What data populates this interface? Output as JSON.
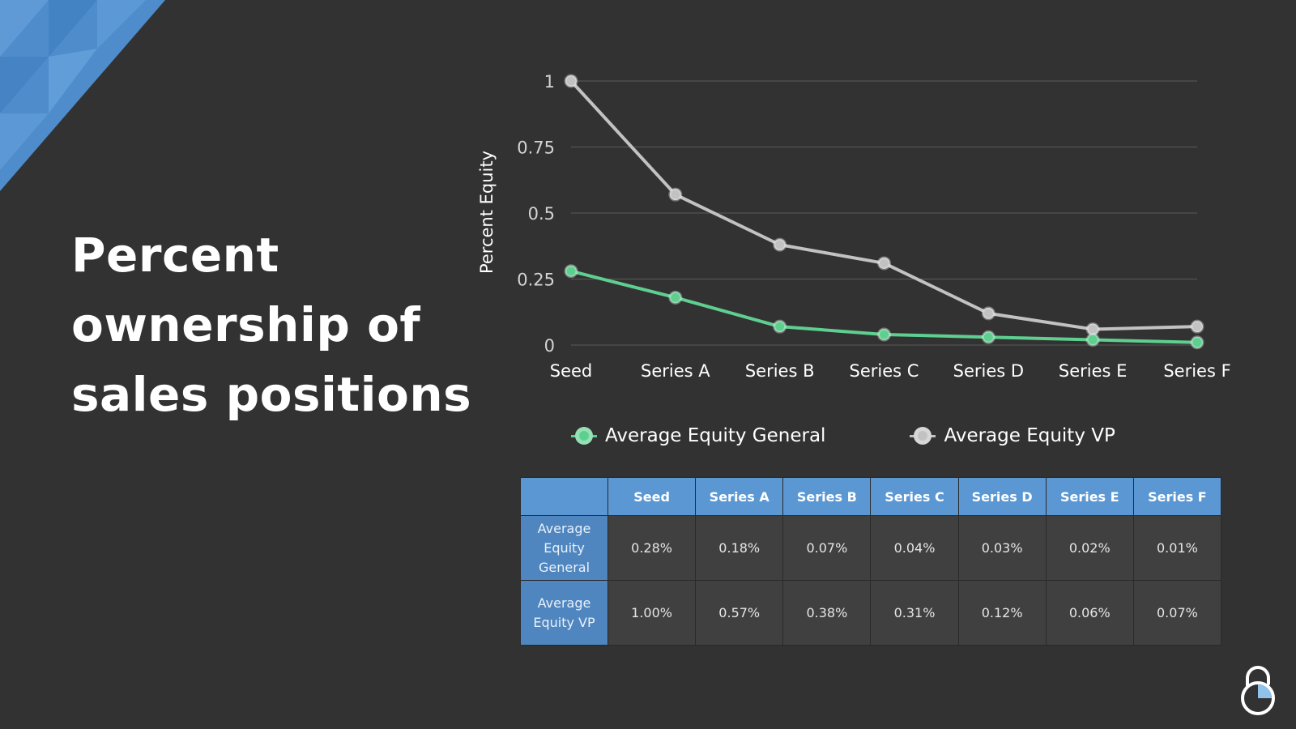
{
  "slide": {
    "title": "Percent ownership of sales positions"
  },
  "colors": {
    "background": "#323232",
    "general": "#5fcf90",
    "vp": "#c2c2c2",
    "accent": "#4f86bf"
  },
  "chart_data": {
    "type": "line",
    "title": "",
    "xlabel": "",
    "ylabel": "Percent Equity",
    "categories": [
      "Seed",
      "Series A",
      "Series B",
      "Series C",
      "Series D",
      "Series E",
      "Series F"
    ],
    "ylim": [
      0,
      1
    ],
    "yticks": [
      0,
      0.25,
      0.5,
      0.75,
      1
    ],
    "ytick_labels": [
      "0",
      "0.25",
      "0.5",
      "0.75",
      "1"
    ],
    "grid": true,
    "legend": "bottom",
    "series": [
      {
        "name": "Average Equity General",
        "color": "#5fcf90",
        "values": [
          0.28,
          0.18,
          0.07,
          0.04,
          0.03,
          0.02,
          0.01
        ]
      },
      {
        "name": "Average Equity VP",
        "color": "#c2c2c2",
        "values": [
          1.0,
          0.57,
          0.38,
          0.31,
          0.12,
          0.06,
          0.07
        ]
      }
    ]
  },
  "table": {
    "columns": [
      "",
      "Seed",
      "Series A",
      "Series B",
      "Series C",
      "Series D",
      "Series E",
      "Series F"
    ],
    "rows": [
      {
        "label": "Average Equity General",
        "cells": [
          "0.28%",
          "0.18%",
          "0.07%",
          "0.04%",
          "0.03%",
          "0.02%",
          "0.01%"
        ]
      },
      {
        "label": "Average Equity VP",
        "cells": [
          "1.00%",
          "0.57%",
          "0.38%",
          "0.31%",
          "0.12%",
          "0.06%",
          "0.07%"
        ]
      }
    ]
  },
  "icons": {
    "corner": "triangle-pattern-icon",
    "logo": "padlock-chart-logo-icon"
  }
}
